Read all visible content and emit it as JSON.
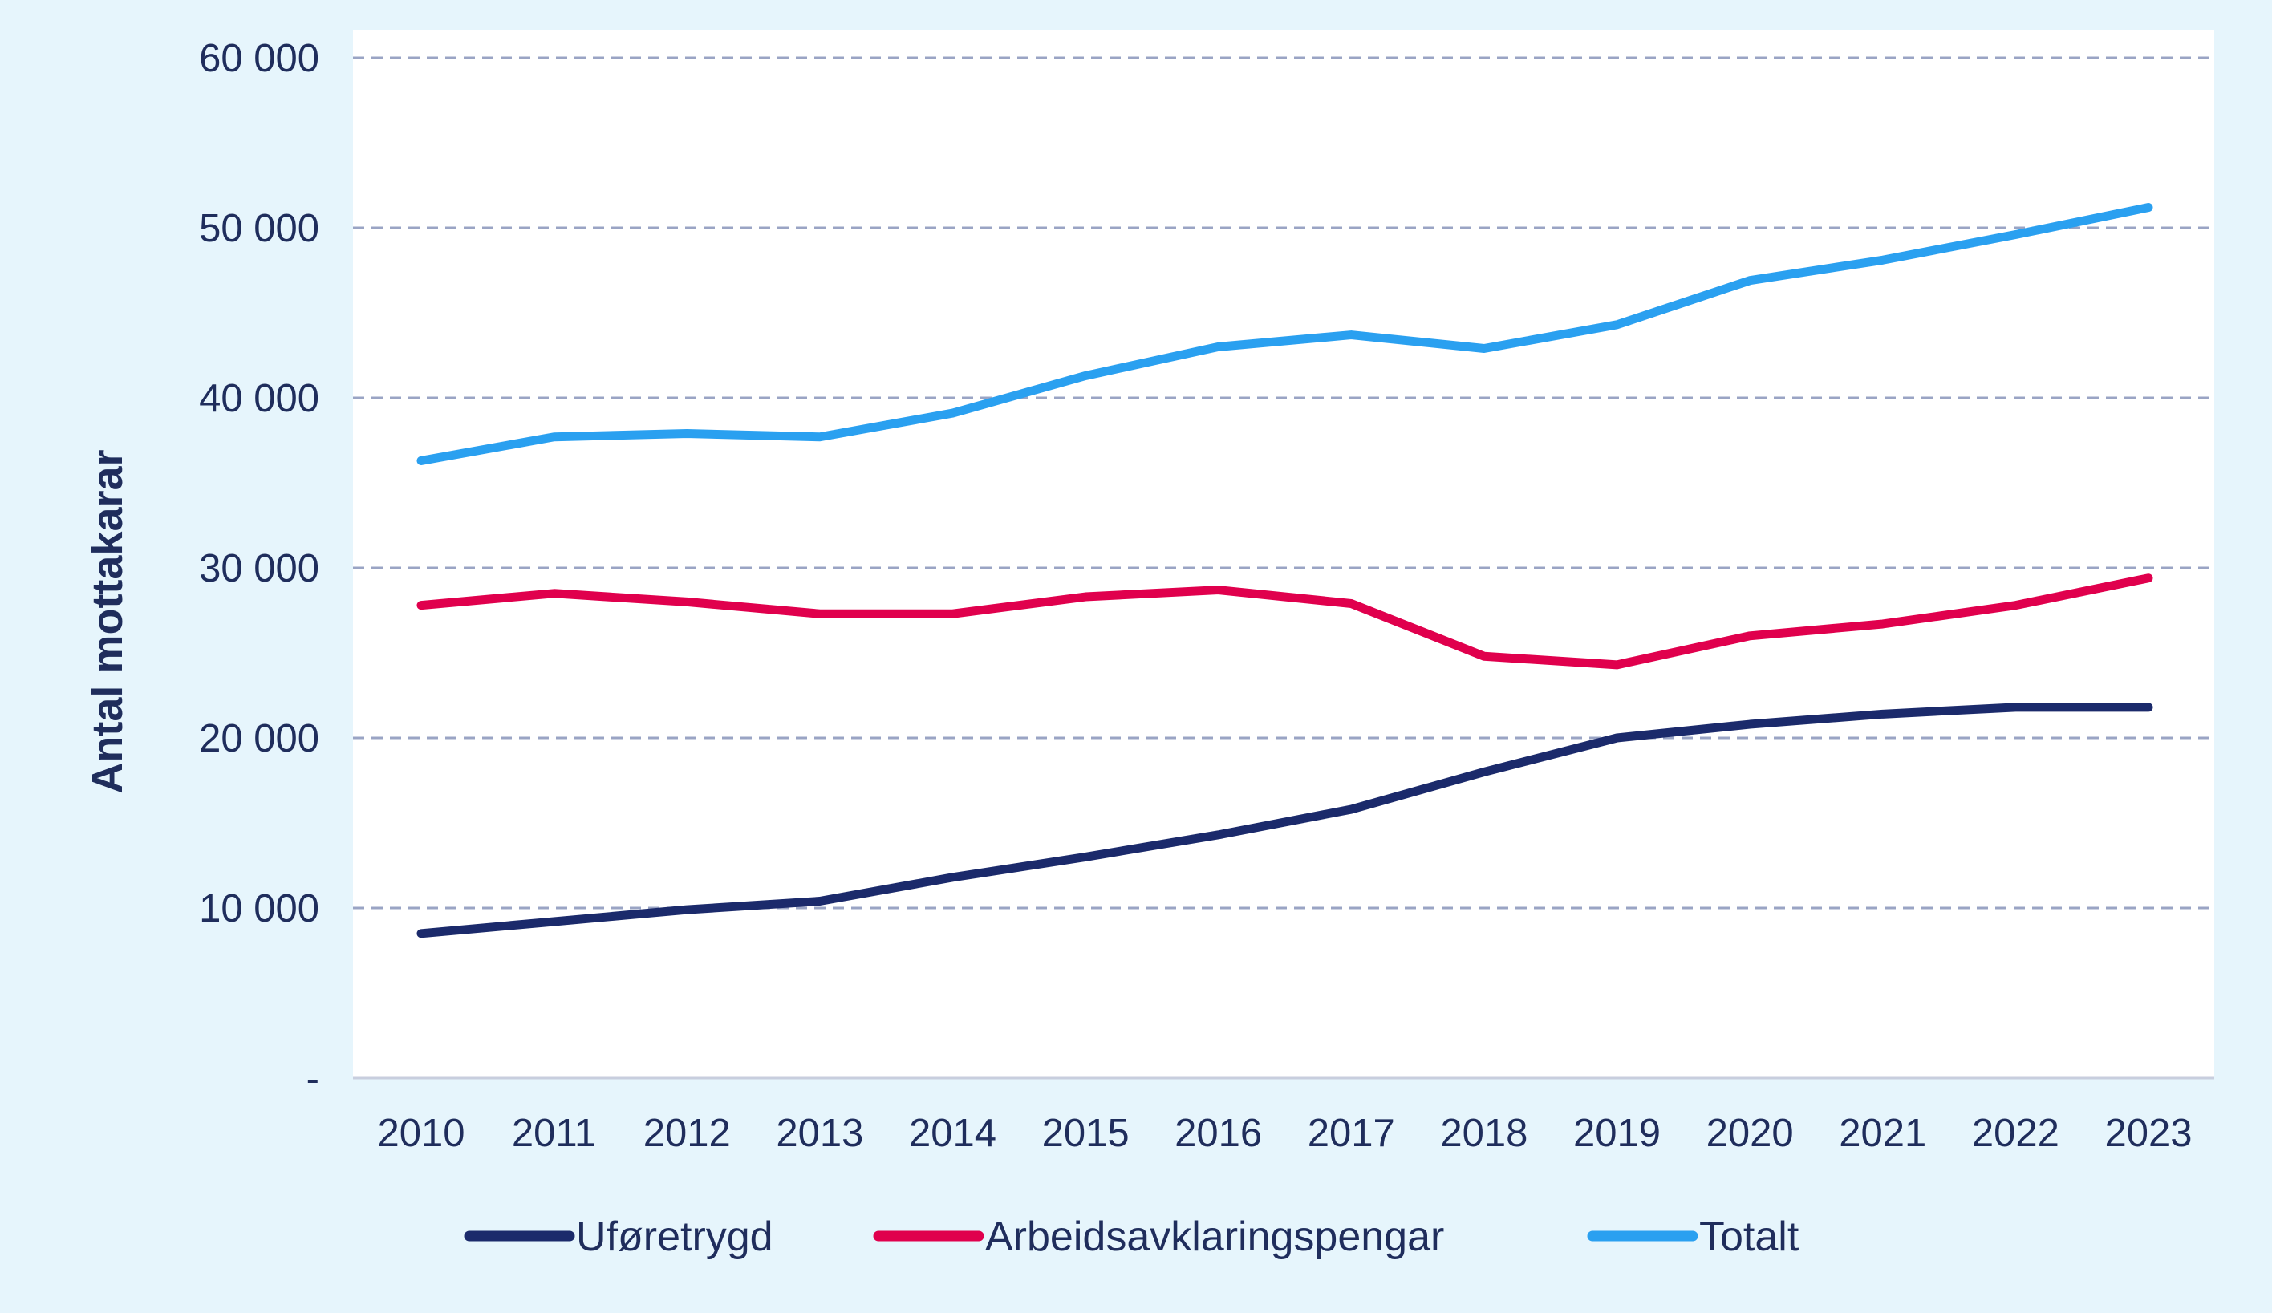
{
  "chart_data": {
    "type": "line",
    "title": "",
    "xlabel": "",
    "ylabel": "Antal mottakarar",
    "ylim": [
      0,
      60000
    ],
    "yticks": [
      {
        "value": 0,
        "label": "-"
      },
      {
        "value": 10000,
        "label": "10 000"
      },
      {
        "value": 20000,
        "label": "20 000"
      },
      {
        "value": 30000,
        "label": "30 000"
      },
      {
        "value": 40000,
        "label": "40 000"
      },
      {
        "value": 50000,
        "label": "50 000"
      },
      {
        "value": 60000,
        "label": "60 000"
      }
    ],
    "categories": [
      "2010",
      "2011",
      "2012",
      "2013",
      "2014",
      "2015",
      "2016",
      "2017",
      "2018",
      "2019",
      "2020",
      "2021",
      "2022",
      "2023"
    ],
    "grid": true,
    "legend_position": "bottom",
    "series": [
      {
        "name": "Uføretrygd",
        "color": "#1b2a6b",
        "values": [
          8500,
          9200,
          9900,
          10400,
          11800,
          13000,
          14300,
          15800,
          18000,
          20000,
          20800,
          21400,
          21800,
          21800
        ]
      },
      {
        "name": "Arbeidsavklaringspengar",
        "color": "#e0004d",
        "values": [
          27800,
          28500,
          28000,
          27300,
          27300,
          28300,
          28700,
          27900,
          24800,
          24300,
          26000,
          26700,
          27800,
          29400
        ]
      },
      {
        "name": "Totalt",
        "color": "#2aa0f0",
        "values": [
          36300,
          37700,
          37900,
          37700,
          39100,
          41300,
          43000,
          43700,
          42900,
          44300,
          46900,
          48100,
          49600,
          51200
        ]
      }
    ]
  }
}
